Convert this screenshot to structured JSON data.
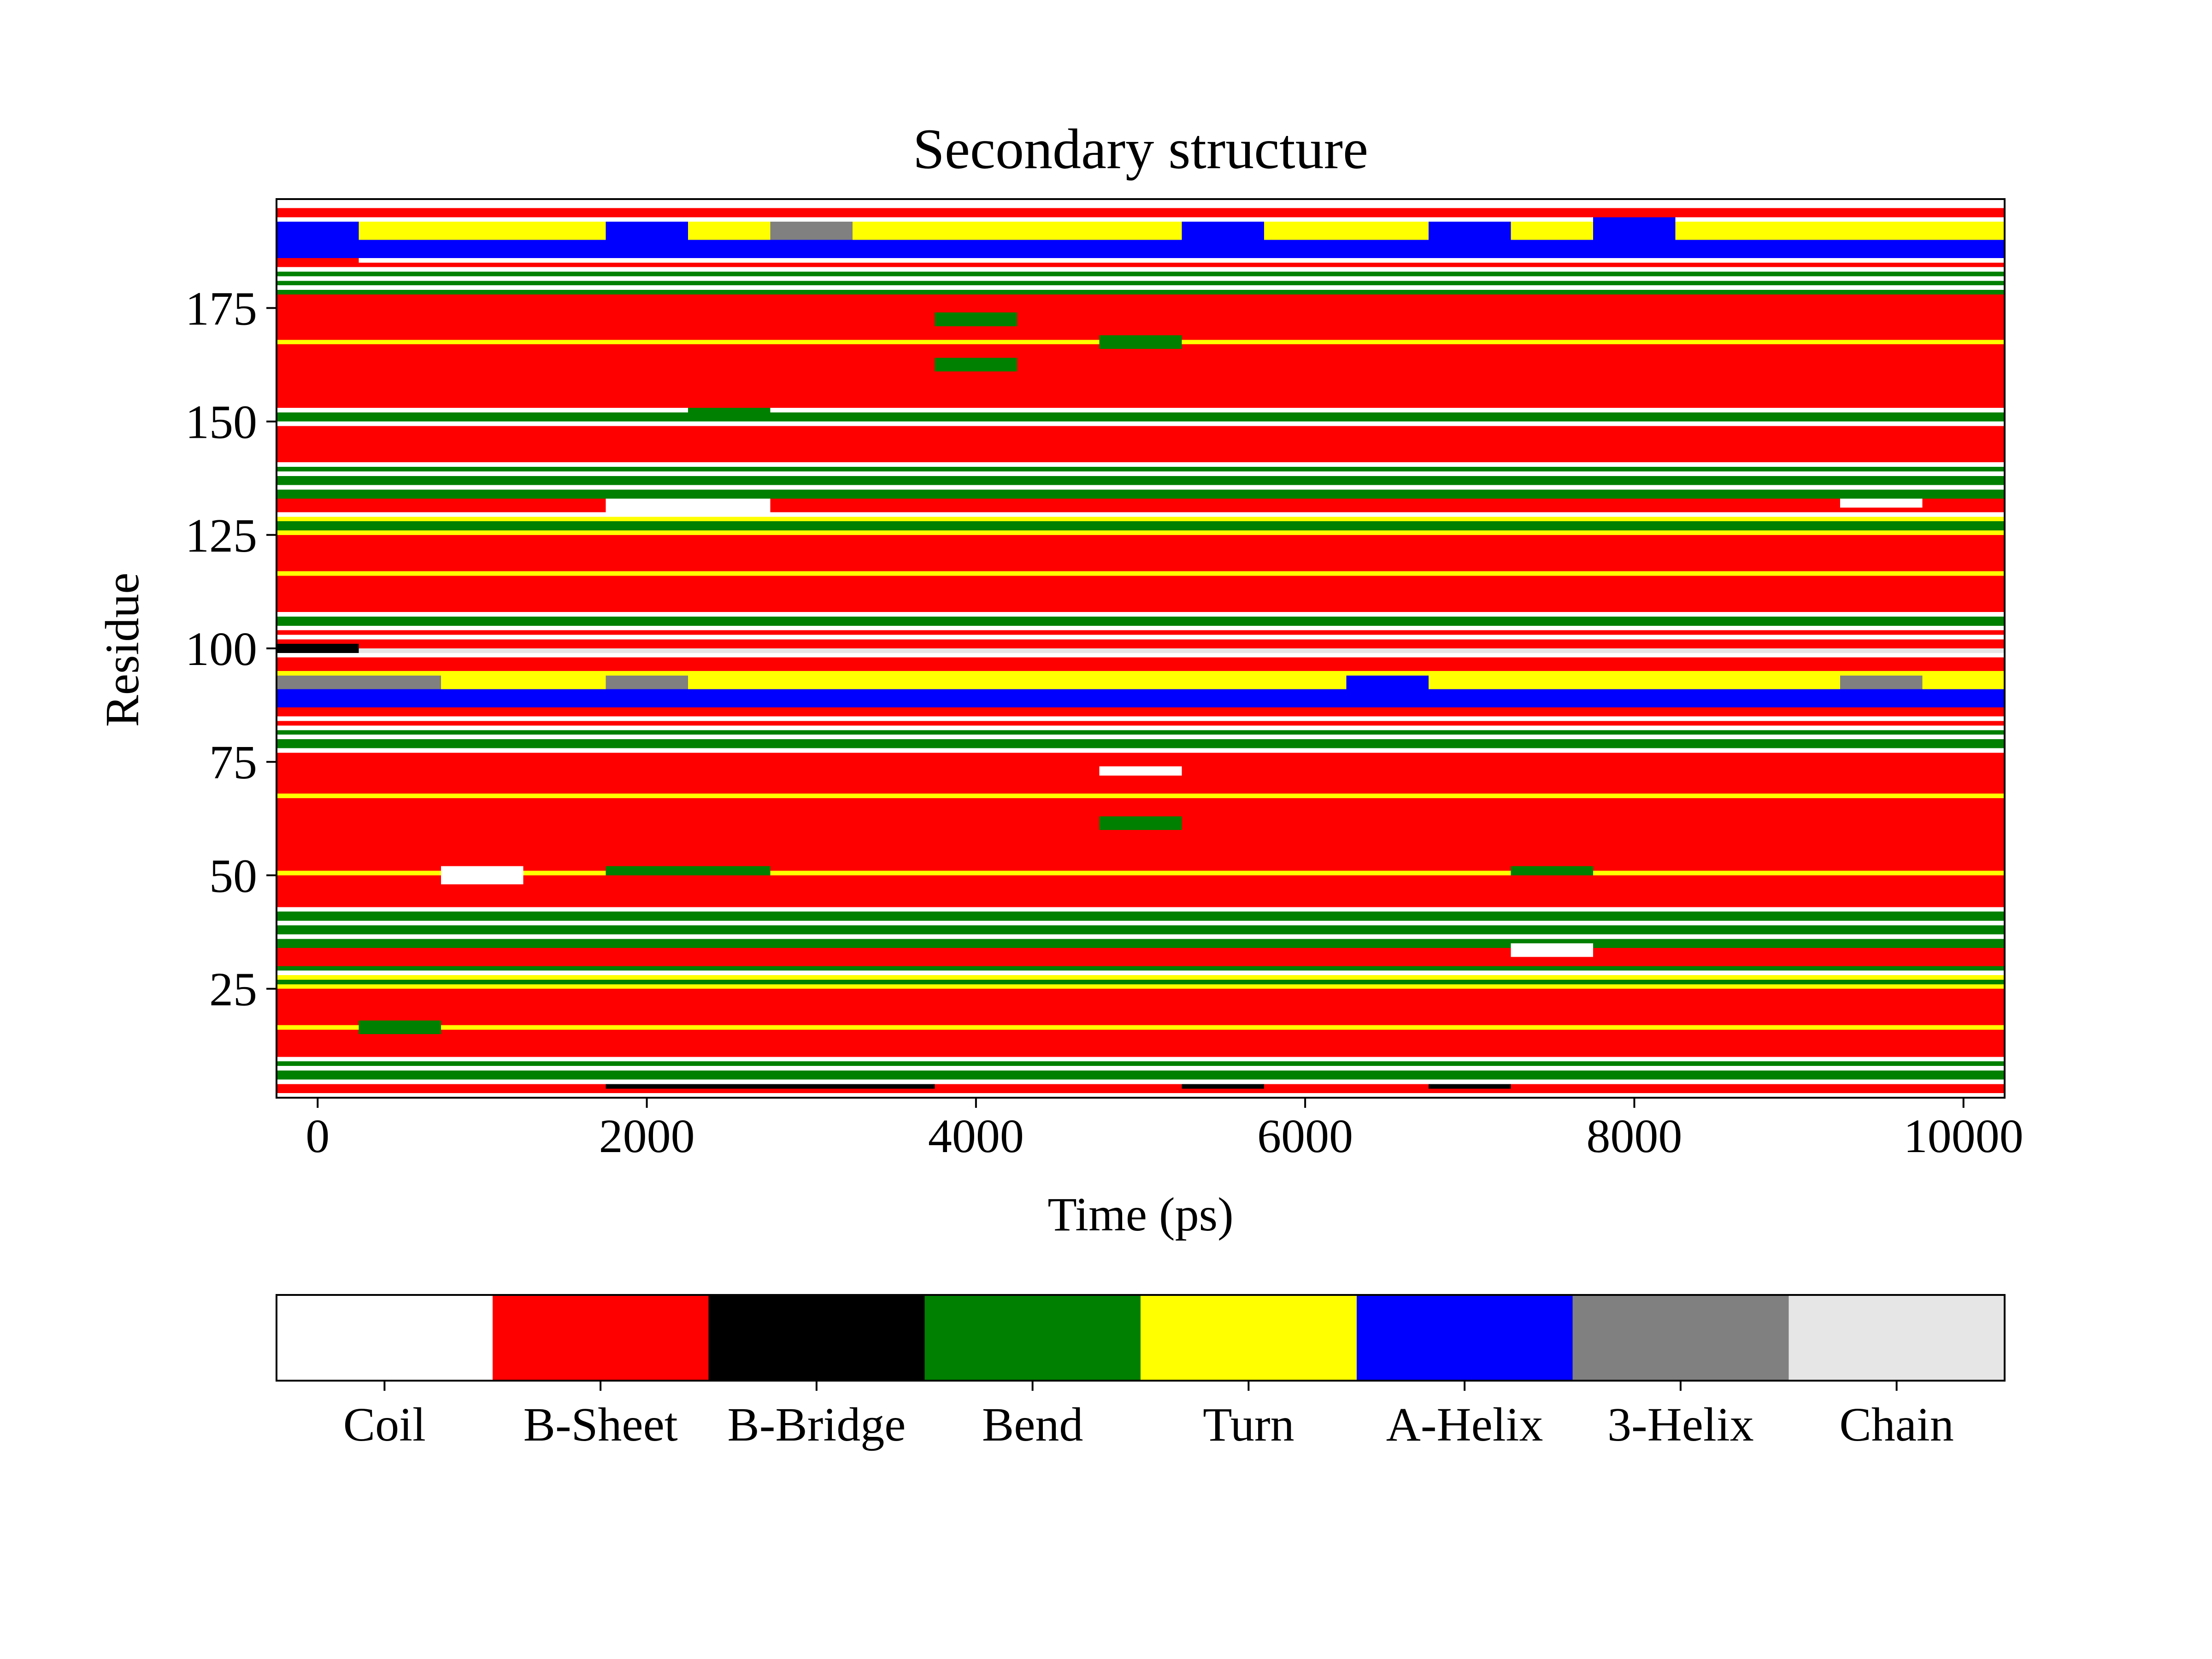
{
  "chart_data": {
    "type": "heatmap",
    "title": "Secondary structure",
    "xlabel": "Time (ps)",
    "ylabel": "Residue",
    "xlim": [
      -250,
      10250
    ],
    "ylim": [
      1,
      199
    ],
    "x_ticks": [
      0,
      2000,
      4000,
      6000,
      8000,
      10000
    ],
    "y_ticks": [
      25,
      50,
      75,
      100,
      125,
      150,
      175
    ],
    "grid": false,
    "legend": "colorbar-bottom",
    "categories": [
      {
        "name": "Coil",
        "color": "#ffffff"
      },
      {
        "name": "B-Sheet",
        "color": "#ff0000"
      },
      {
        "name": "B-Bridge",
        "color": "#000000"
      },
      {
        "name": "Bend",
        "color": "#008000"
      },
      {
        "name": "Turn",
        "color": "#ffff00"
      },
      {
        "name": "A-Helix",
        "color": "#0000ff"
      },
      {
        "name": "3-Helix",
        "color": "#808080"
      },
      {
        "name": "Chain",
        "color": "#e6e6e6"
      }
    ],
    "frames": [
      0,
      500,
      1000,
      1500,
      2000,
      2500,
      3000,
      3500,
      4000,
      4500,
      5000,
      5500,
      6000,
      6500,
      7000,
      7500,
      8000,
      8500,
      9000,
      9500,
      10000
    ],
    "residue_bands": [
      {
        "from": 1,
        "to": 2,
        "state": "Coil"
      },
      {
        "from": 2,
        "to": 4,
        "state": "B-Sheet"
      },
      {
        "from": 4,
        "to": 5,
        "state": "Coil"
      },
      {
        "from": 5,
        "to": 7,
        "state": "Bend"
      },
      {
        "from": 7,
        "to": 8,
        "state": "Coil"
      },
      {
        "from": 8,
        "to": 9,
        "state": "Bend"
      },
      {
        "from": 9,
        "to": 10,
        "state": "Coil"
      },
      {
        "from": 10,
        "to": 16,
        "state": "B-Sheet"
      },
      {
        "from": 16,
        "to": 17,
        "state": "Turn"
      },
      {
        "from": 17,
        "to": 25,
        "state": "B-Sheet"
      },
      {
        "from": 25,
        "to": 26,
        "state": "Turn"
      },
      {
        "from": 26,
        "to": 27,
        "state": "Bend"
      },
      {
        "from": 27,
        "to": 28,
        "state": "Turn"
      },
      {
        "from": 28,
        "to": 29,
        "state": "Coil"
      },
      {
        "from": 29,
        "to": 30,
        "state": "Bend"
      },
      {
        "from": 30,
        "to": 34,
        "state": "B-Sheet"
      },
      {
        "from": 34,
        "to": 36,
        "state": "Bend"
      },
      {
        "from": 36,
        "to": 37,
        "state": "Coil"
      },
      {
        "from": 37,
        "to": 39,
        "state": "Bend"
      },
      {
        "from": 39,
        "to": 40,
        "state": "Coil"
      },
      {
        "from": 40,
        "to": 42,
        "state": "Bend"
      },
      {
        "from": 42,
        "to": 43,
        "state": "Coil"
      },
      {
        "from": 43,
        "to": 50,
        "state": "B-Sheet"
      },
      {
        "from": 50,
        "to": 51,
        "state": "Turn"
      },
      {
        "from": 51,
        "to": 67,
        "state": "B-Sheet"
      },
      {
        "from": 67,
        "to": 68,
        "state": "Turn"
      },
      {
        "from": 68,
        "to": 77,
        "state": "B-Sheet"
      },
      {
        "from": 77,
        "to": 78,
        "state": "Coil"
      },
      {
        "from": 78,
        "to": 80,
        "state": "Bend"
      },
      {
        "from": 80,
        "to": 81,
        "state": "Coil"
      },
      {
        "from": 81,
        "to": 82,
        "state": "Bend"
      },
      {
        "from": 82,
        "to": 83,
        "state": "Coil"
      },
      {
        "from": 83,
        "to": 84,
        "state": "B-Sheet"
      },
      {
        "from": 84,
        "to": 85,
        "state": "Coil"
      },
      {
        "from": 85,
        "to": 87,
        "state": "B-Sheet"
      },
      {
        "from": 87,
        "to": 91,
        "state": "A-Helix"
      },
      {
        "from": 91,
        "to": 95,
        "state": "Turn"
      },
      {
        "from": 95,
        "to": 98,
        "state": "B-Sheet"
      },
      {
        "from": 98,
        "to": 99,
        "state": "Coil"
      },
      {
        "from": 99,
        "to": 100,
        "state": "Chain"
      },
      {
        "from": 100,
        "to": 102,
        "state": "B-Sheet"
      },
      {
        "from": 102,
        "to": 103,
        "state": "Coil"
      },
      {
        "from": 103,
        "to": 104,
        "state": "B-Sheet"
      },
      {
        "from": 104,
        "to": 105,
        "state": "Coil"
      },
      {
        "from": 105,
        "to": 107,
        "state": "Bend"
      },
      {
        "from": 107,
        "to": 108,
        "state": "Coil"
      },
      {
        "from": 108,
        "to": 116,
        "state": "B-Sheet"
      },
      {
        "from": 116,
        "to": 117,
        "state": "Turn"
      },
      {
        "from": 117,
        "to": 125,
        "state": "B-Sheet"
      },
      {
        "from": 125,
        "to": 126,
        "state": "Turn"
      },
      {
        "from": 126,
        "to": 128,
        "state": "Bend"
      },
      {
        "from": 128,
        "to": 129,
        "state": "Turn"
      },
      {
        "from": 129,
        "to": 130,
        "state": "Coil"
      },
      {
        "from": 130,
        "to": 133,
        "state": "B-Sheet"
      },
      {
        "from": 133,
        "to": 135,
        "state": "Bend"
      },
      {
        "from": 135,
        "to": 136,
        "state": "Coil"
      },
      {
        "from": 136,
        "to": 138,
        "state": "Bend"
      },
      {
        "from": 138,
        "to": 139,
        "state": "Coil"
      },
      {
        "from": 139,
        "to": 140,
        "state": "Bend"
      },
      {
        "from": 140,
        "to": 141,
        "state": "Coil"
      },
      {
        "from": 141,
        "to": 149,
        "state": "B-Sheet"
      },
      {
        "from": 149,
        "to": 150,
        "state": "Coil"
      },
      {
        "from": 150,
        "to": 152,
        "state": "Bend"
      },
      {
        "from": 152,
        "to": 153,
        "state": "Coil"
      },
      {
        "from": 153,
        "to": 167,
        "state": "B-Sheet"
      },
      {
        "from": 167,
        "to": 168,
        "state": "Turn"
      },
      {
        "from": 168,
        "to": 178,
        "state": "B-Sheet"
      },
      {
        "from": 178,
        "to": 179,
        "state": "Bend"
      },
      {
        "from": 179,
        "to": 180,
        "state": "Coil"
      },
      {
        "from": 180,
        "to": 181,
        "state": "Bend"
      },
      {
        "from": 181,
        "to": 182,
        "state": "Coil"
      },
      {
        "from": 182,
        "to": 183,
        "state": "Bend"
      },
      {
        "from": 183,
        "to": 184,
        "state": "Coil"
      },
      {
        "from": 184,
        "to": 185,
        "state": "B-Sheet"
      },
      {
        "from": 185,
        "to": 186,
        "state": "Coil"
      },
      {
        "from": 186,
        "to": 190,
        "state": "A-Helix"
      },
      {
        "from": 190,
        "to": 194,
        "state": "Turn"
      },
      {
        "from": 194,
        "to": 195,
        "state": "Coil"
      },
      {
        "from": 195,
        "to": 197,
        "state": "B-Sheet"
      },
      {
        "from": 197,
        "to": 199,
        "state": "Coil"
      }
    ],
    "overrides": [
      {
        "t0": -250,
        "t1": 250,
        "r0": 190,
        "r1": 194,
        "state": "A-Helix"
      },
      {
        "t0": 1750,
        "t1": 2250,
        "r0": 190,
        "r1": 194,
        "state": "A-Helix"
      },
      {
        "t0": 2750,
        "t1": 3250,
        "r0": 190,
        "r1": 194,
        "state": "3-Helix"
      },
      {
        "t0": 5250,
        "t1": 5750,
        "r0": 190,
        "r1": 194,
        "state": "A-Helix"
      },
      {
        "t0": 6750,
        "t1": 7250,
        "r0": 190,
        "r1": 194,
        "state": "A-Helix"
      },
      {
        "t0": 7750,
        "t1": 8250,
        "r0": 190,
        "r1": 195,
        "state": "A-Helix"
      },
      {
        "t0": -250,
        "t1": 750,
        "r0": 91,
        "r1": 94,
        "state": "3-Helix"
      },
      {
        "t0": 1750,
        "t1": 2250,
        "r0": 91,
        "r1": 94,
        "state": "3-Helix"
      },
      {
        "t0": 6250,
        "t1": 6750,
        "r0": 91,
        "r1": 94,
        "state": "A-Helix"
      },
      {
        "t0": 9250,
        "t1": 9750,
        "r0": 91,
        "r1": 94,
        "state": "3-Helix"
      },
      {
        "t0": 750,
        "t1": 1250,
        "r0": 48,
        "r1": 52,
        "state": "Coil"
      },
      {
        "t0": 1750,
        "t1": 2750,
        "r0": 50,
        "r1": 52,
        "state": "Bend"
      },
      {
        "t0": 7250,
        "t1": 7750,
        "r0": 50,
        "r1": 52,
        "state": "Bend"
      },
      {
        "t0": 4750,
        "t1": 5250,
        "r0": 72,
        "r1": 74,
        "state": "Coil"
      },
      {
        "t0": 4750,
        "t1": 5250,
        "r0": 60,
        "r1": 63,
        "state": "Bend"
      },
      {
        "t0": 3750,
        "t1": 4250,
        "r0": 161,
        "r1": 164,
        "state": "Bend"
      },
      {
        "t0": 3750,
        "t1": 4250,
        "r0": 171,
        "r1": 174,
        "state": "Bend"
      },
      {
        "t0": 4750,
        "t1": 5250,
        "r0": 166,
        "r1": 169,
        "state": "Bend"
      },
      {
        "t0": 250,
        "t1": 750,
        "r0": 15,
        "r1": 18,
        "state": "Bend"
      },
      {
        "t0": 7250,
        "t1": 7750,
        "r0": 32,
        "r1": 35,
        "state": "Coil"
      },
      {
        "t0": 1750,
        "t1": 2750,
        "r0": 129,
        "r1": 133,
        "state": "Coil"
      },
      {
        "t0": 9250,
        "t1": 9750,
        "r0": 131,
        "r1": 133,
        "state": "Coil"
      },
      {
        "t0": 2250,
        "t1": 2750,
        "r0": 151,
        "r1": 153,
        "state": "Bend"
      },
      {
        "t0": -250,
        "t1": 250,
        "r0": 99,
        "r1": 101,
        "state": "B-Bridge"
      },
      {
        "t0": 1750,
        "t1": 3750,
        "r0": 3,
        "r1": 4,
        "state": "B-Bridge"
      },
      {
        "t0": 5250,
        "t1": 5750,
        "r0": 3,
        "r1": 4,
        "state": "B-Bridge"
      },
      {
        "t0": 6750,
        "t1": 7250,
        "r0": 3,
        "r1": 4,
        "state": "B-Bridge"
      },
      {
        "t0": -250,
        "t1": 250,
        "r0": 185,
        "r1": 186,
        "state": "B-Sheet"
      }
    ]
  }
}
